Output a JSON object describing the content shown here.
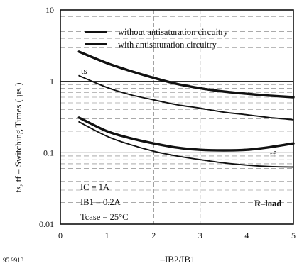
{
  "chart_data": {
    "type": "line",
    "figure_code": "95 9913",
    "ylabel": "ts, tf – Switching Times ( µs )",
    "xlabel": "–IB2/IB1",
    "xlim": [
      0,
      5
    ],
    "ylim": [
      0.01,
      10
    ],
    "yscale": "log",
    "x_ticks": [
      "0",
      "1",
      "2",
      "3",
      "4",
      "5"
    ],
    "y_ticks": [
      "0.01",
      "0.1",
      "1",
      "10"
    ],
    "grid": true,
    "legend_position": "top",
    "legend": [
      {
        "label": "without antisaturation circuitry",
        "style": "thick"
      },
      {
        "label": "with antisaturation circuitry",
        "style": "thin"
      }
    ],
    "curve_labels": {
      "ts": "ts",
      "tf": "tf"
    },
    "conditions": [
      "IC = 1A",
      "IB1 = 0.2A",
      "Tcase = 25°C"
    ],
    "load": "R–load",
    "series": [
      {
        "name": "ts without antisaturation circuitry",
        "style": "thick",
        "x": [
          0.4,
          1.0,
          1.5,
          2.0,
          2.5,
          3.0,
          3.5,
          4.0,
          4.5,
          5.0
        ],
        "y": [
          2.6,
          1.8,
          1.4,
          1.12,
          0.92,
          0.8,
          0.72,
          0.67,
          0.63,
          0.6
        ]
      },
      {
        "name": "ts with antisaturation circuitry",
        "style": "thin",
        "x": [
          0.4,
          1.0,
          1.5,
          2.0,
          2.5,
          3.0,
          3.5,
          4.0,
          4.5,
          5.0
        ],
        "y": [
          1.2,
          0.82,
          0.65,
          0.55,
          0.47,
          0.42,
          0.37,
          0.34,
          0.31,
          0.29
        ]
      },
      {
        "name": "tf without antisaturation circuitry",
        "style": "thick",
        "x": [
          0.4,
          1.0,
          1.5,
          2.0,
          2.5,
          3.0,
          3.5,
          4.0,
          4.5,
          5.0
        ],
        "y": [
          0.31,
          0.2,
          0.16,
          0.135,
          0.118,
          0.11,
          0.108,
          0.11,
          0.12,
          0.135
        ]
      },
      {
        "name": "tf with antisaturation circuitry",
        "style": "thin",
        "x": [
          0.4,
          1.0,
          1.5,
          2.0,
          2.5,
          3.0,
          3.5,
          4.0,
          4.5,
          5.0
        ],
        "y": [
          0.27,
          0.17,
          0.13,
          0.105,
          0.09,
          0.08,
          0.072,
          0.067,
          0.064,
          0.063
        ]
      }
    ]
  }
}
